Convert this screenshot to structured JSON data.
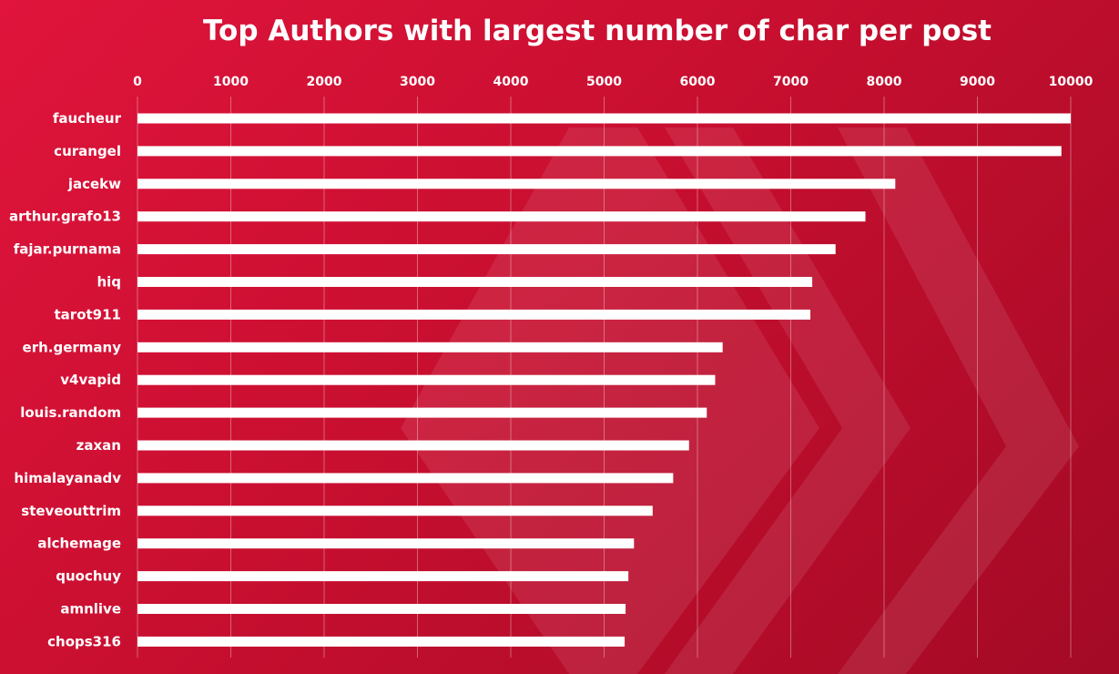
{
  "chart_data": {
    "type": "bar",
    "orientation": "horizontal",
    "title": "Top Authors with largest number of char per post",
    "xlabel": "",
    "ylabel": "",
    "xlim": [
      0,
      10000
    ],
    "x_ticks": [
      0,
      1000,
      2000,
      3000,
      4000,
      5000,
      6000,
      7000,
      8000,
      9000,
      10000
    ],
    "x_axis_position": "top",
    "grid": true,
    "legend": "none",
    "categories": [
      "faucheur",
      "curangel",
      "jacekw",
      "arthur.grafo13",
      "fajar.purnama",
      "hiq",
      "tarot911",
      "erh.germany",
      "v4vapid",
      "louis.random",
      "zaxan",
      "himalayanadv",
      "steveouttrim",
      "alchemage",
      "quochuy",
      "amnlive",
      "chops316"
    ],
    "values": [
      10000,
      9900,
      8120,
      7800,
      7480,
      7230,
      7210,
      6270,
      6190,
      6100,
      5910,
      5740,
      5520,
      5320,
      5260,
      5230,
      5220
    ]
  },
  "colors": {
    "background_start": "#e0143c",
    "background_end": "#a30a25",
    "bar": "#ffffff",
    "text": "#ffffff"
  },
  "watermark_icon": "hive-logo-icon"
}
